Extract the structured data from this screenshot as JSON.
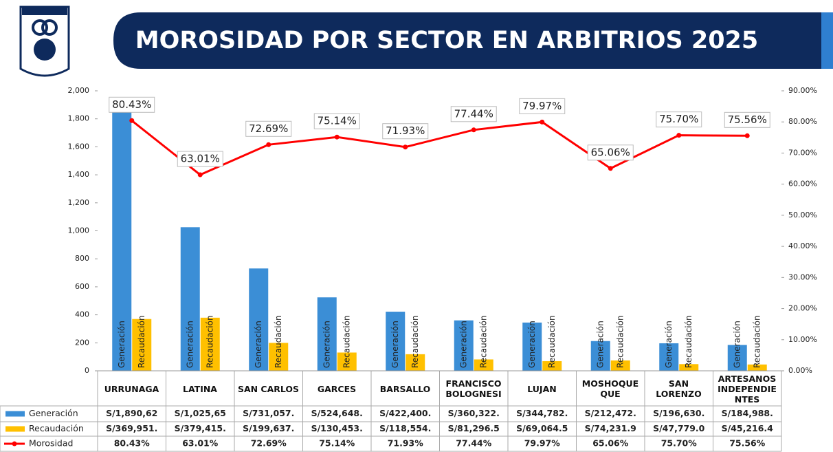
{
  "chart_data": {
    "type": "bar",
    "title": "MOROSIDAD POR SECTOR EN ARBITRIOS 2025",
    "categories": [
      "URRUNAGA",
      "LATINA",
      "SAN CARLOS",
      "GARCES",
      "BARSALLO",
      "FRANCISCO BOLOGNESI",
      "LUJAN",
      "MOSHOQUE QUE",
      "SAN LORENZO",
      "ARTESANOS INDEPENDIE NTES"
    ],
    "series": [
      {
        "name": "Generación",
        "color": "#3b8ed6",
        "values": [
          1890.62,
          1025.65,
          731.057,
          524.648,
          422.4,
          360.322,
          344.782,
          212.472,
          196.63,
          184.988
        ],
        "value_labels": [
          "S/1,890,62",
          "S/1,025,65",
          "S/731,057.",
          "S/524,648.",
          "S/422,400.",
          "S/360,322.",
          "S/344,782.",
          "S/212,472.",
          "S/196,630.",
          "S/184,988."
        ]
      },
      {
        "name": "Recaudación",
        "color": "#ffc000",
        "values": [
          369.951,
          379.415,
          199.637,
          130.453,
          118.554,
          81.2965,
          69.0645,
          74.2319,
          47.779,
          45.2164
        ],
        "value_labels": [
          "S/369,951.",
          "S/379,415.",
          "S/199,637.",
          "S/130,453.",
          "S/118,554.",
          "S/81,296.5",
          "S/69,064.5",
          "S/74,231.9",
          "S/47,779.0",
          "S/45,216.4"
        ]
      },
      {
        "name": "Morosidad",
        "color": "#ff0000",
        "axis": "y2",
        "type": "line",
        "values": [
          80.43,
          63.01,
          72.69,
          75.14,
          71.93,
          77.44,
          79.97,
          65.06,
          75.7,
          75.56
        ],
        "value_labels": [
          "80.43%",
          "63.01%",
          "72.69%",
          "75.14%",
          "71.93%",
          "77.44%",
          "79.97%",
          "65.06%",
          "75.70%",
          "75.56%"
        ]
      }
    ],
    "ylim": [
      0,
      2000
    ],
    "yticks": [
      0,
      {
        "value": 200,
        "label": "200"
      },
      400,
      600,
      800,
      {
        "value": 1000,
        "label": "1,000"
      },
      {
        "value": 1200,
        "label": "1,200"
      },
      {
        "value": 1400,
        "label": "1,400"
      },
      {
        "value": 1600,
        "label": "1,600"
      },
      {
        "value": 1800,
        "label": "1,800"
      },
      {
        "value": 2000,
        "label": "2,000"
      }
    ],
    "y2lim": [
      0,
      90
    ],
    "y2ticks": [
      {
        "value": 0,
        "label": "0.00%"
      },
      {
        "value": 10,
        "label": "10.00%"
      },
      {
        "value": 20,
        "label": "20.00%"
      },
      {
        "value": 30,
        "label": "30.00%"
      },
      {
        "value": 40,
        "label": "40.00%"
      },
      {
        "value": 50,
        "label": "50.00%"
      },
      {
        "value": 60,
        "label": "60.00%"
      },
      {
        "value": 70,
        "label": "70.00%"
      },
      {
        "value": 80,
        "label": "80.00%"
      },
      {
        "value": 90,
        "label": "90.00%"
      }
    ]
  }
}
